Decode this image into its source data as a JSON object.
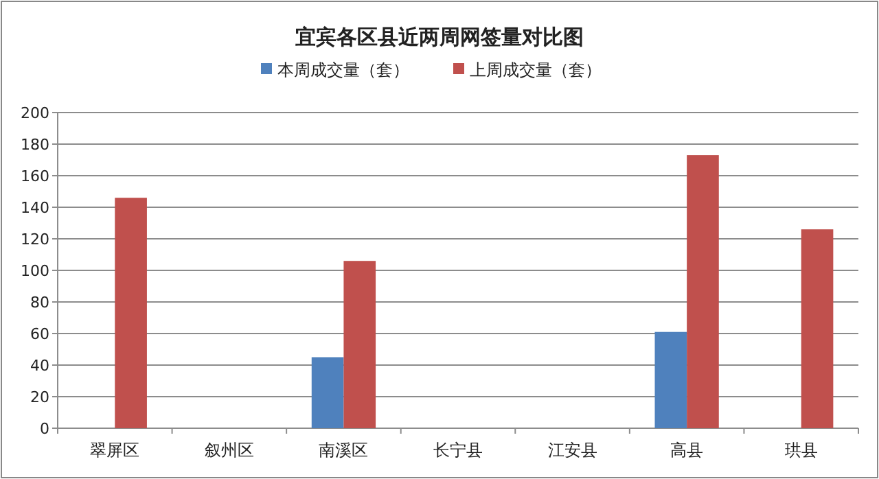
{
  "chart_data": {
    "type": "bar",
    "title": "宜宾各区县近两周网签量对比图",
    "categories": [
      "翠屏区",
      "叙州区",
      "南溪区",
      "长宁县",
      "江安县",
      "高县",
      "珙县"
    ],
    "series": [
      {
        "name": "本周成交量（套）",
        "color": "#4f81bd",
        "values": [
          null,
          null,
          45,
          null,
          null,
          61,
          null
        ]
      },
      {
        "name": "上周成交量（套）",
        "color": "#c0504d",
        "values": [
          146,
          null,
          106,
          null,
          null,
          173,
          126
        ]
      }
    ],
    "ylim": [
      0,
      200
    ],
    "yticks": [
      0,
      20,
      40,
      60,
      80,
      100,
      120,
      140,
      160,
      180,
      200
    ],
    "grid": "y",
    "legend": "top"
  }
}
